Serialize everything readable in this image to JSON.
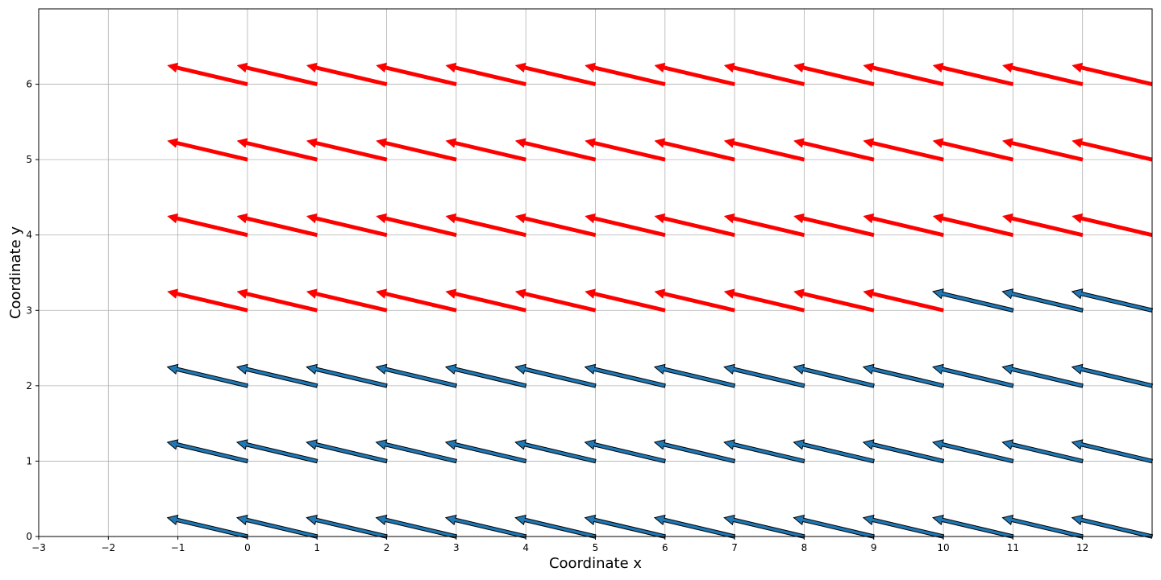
{
  "chart_data": {
    "type": "quiver",
    "xlabel": "Coordinate x",
    "ylabel": "Coordinate y",
    "xlim": [
      -3,
      13
    ],
    "ylim": [
      0,
      7
    ],
    "x_ticks": [
      "−3",
      "−2",
      "−1",
      "0",
      "1",
      "2",
      "3",
      "4",
      "5",
      "6",
      "7",
      "8",
      "9",
      "10",
      "11",
      "12"
    ],
    "x_tick_values": [
      -3,
      -2,
      -1,
      0,
      1,
      2,
      3,
      4,
      5,
      6,
      7,
      8,
      9,
      10,
      11,
      12
    ],
    "y_ticks": [
      "0",
      "1",
      "2",
      "3",
      "4",
      "5",
      "6"
    ],
    "y_tick_values": [
      0,
      1,
      2,
      3,
      4,
      5,
      6
    ],
    "grid": true,
    "arrow_tails_x": [
      0,
      1,
      2,
      3,
      4,
      5,
      6,
      7,
      8,
      9,
      10,
      11,
      12,
      13
    ],
    "arrow_tails_y": [
      0,
      1,
      2,
      3,
      4,
      5,
      6
    ],
    "vector": {
      "u": -1.15,
      "v": 0.25
    },
    "colors": {
      "red": "#ff0000",
      "blue": "#1f77b4",
      "blue_edge": "#000000"
    },
    "red_region": "y >= 4, or y = 3 with x <= 10",
    "blue_region": "y <= 2, or y = 3 with x >= 12"
  }
}
